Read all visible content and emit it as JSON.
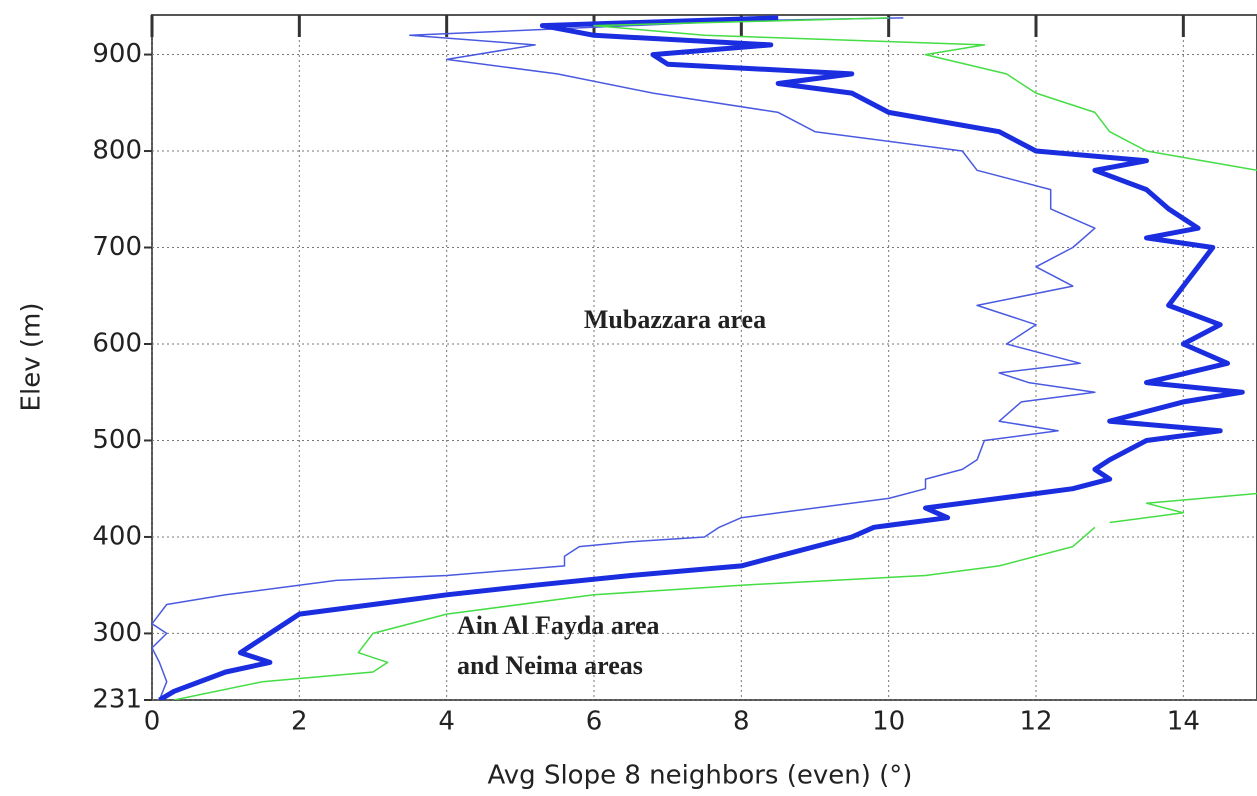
{
  "chart_data": {
    "type": "line",
    "xlabel": "Avg Slope 8 neighbors (even) (°)",
    "ylabel": "Elev (m)",
    "annotations": [
      "Mubazzara area",
      "Ain Al Fayda area",
      "and Neima areas"
    ],
    "xlim": [
      0,
      15
    ],
    "xticks": [
      0,
      2,
      4,
      6,
      8,
      10,
      12,
      14
    ],
    "ylim": [
      231,
      941
    ],
    "yticks": [
      231,
      300,
      400,
      500,
      600,
      700,
      800,
      900
    ],
    "grid": true,
    "series": [
      {
        "color": "#4a5ae0",
        "width": 1.5,
        "x": [
          0.1,
          0.2,
          0.1,
          0.0,
          0.2,
          0.0,
          0.1,
          0.2,
          1.0,
          2.5,
          4.0,
          5.6,
          5.6,
          5.8,
          6.5,
          7.5,
          7.7,
          8.0,
          9.0,
          10.0,
          10.5,
          10.5,
          11.0,
          11.2,
          11.3,
          12.3,
          11.5,
          11.8,
          12.8,
          11.9,
          11.5,
          12.6,
          11.6,
          12.0,
          11.2,
          12.5,
          12.0,
          12.5,
          12.8,
          12.2,
          12.2,
          11.2,
          11.0,
          9.0,
          8.5,
          6.8,
          5.5,
          4.0,
          5.2,
          3.5,
          8.0,
          10.2
        ],
        "values": [
          231,
          250,
          270,
          285,
          300,
          310,
          320,
          330,
          340,
          355,
          360,
          370,
          380,
          390,
          395,
          400,
          410,
          420,
          430,
          440,
          450,
          460,
          470,
          480,
          500,
          510,
          520,
          540,
          550,
          560,
          570,
          580,
          600,
          620,
          640,
          660,
          680,
          700,
          720,
          740,
          760,
          780,
          800,
          820,
          840,
          860,
          880,
          895,
          910,
          920,
          935,
          938
        ]
      },
      {
        "color": "#1a2ee0",
        "width": 5,
        "x": [
          0.1,
          0.3,
          1.0,
          1.6,
          1.2,
          1.6,
          2.0,
          3.0,
          4.0,
          5.2,
          6.5,
          8.0,
          8.5,
          9.5,
          9.8,
          10.8,
          10.5,
          11.5,
          12.5,
          13.0,
          12.8,
          13.0,
          13.5,
          14.5,
          13.0,
          14.0,
          14.8,
          13.5,
          14.6,
          14.0,
          14.5,
          13.8,
          14.0,
          14.2,
          14.4,
          13.5,
          14.2,
          13.8,
          13.5,
          12.8,
          13.5,
          12.0,
          11.5,
          10.0,
          9.5,
          8.5,
          9.5,
          7.0,
          6.8,
          8.4,
          6.0,
          5.3,
          8.5
        ],
        "values": [
          231,
          240,
          260,
          270,
          280,
          300,
          320,
          330,
          340,
          350,
          360,
          370,
          380,
          400,
          410,
          420,
          430,
          440,
          450,
          460,
          470,
          480,
          500,
          510,
          520,
          540,
          550,
          560,
          580,
          600,
          620,
          640,
          660,
          680,
          700,
          710,
          720,
          740,
          760,
          780,
          790,
          800,
          820,
          840,
          860,
          870,
          880,
          890,
          900,
          910,
          920,
          930,
          938
        ]
      },
      {
        "color": "#44dd44",
        "width": 1.5,
        "x": [
          0.3,
          1.5,
          3.0,
          3.2,
          2.8,
          3.0,
          4.0,
          6.0,
          8.0,
          10.5,
          11.5,
          12.5,
          12.8,
          null,
          13.0,
          14.0,
          13.5,
          15.0,
          null,
          15.0,
          13.5,
          13.0,
          12.8,
          12.0,
          11.6,
          10.5,
          11.3,
          7.5,
          6.0,
          10.0
        ],
        "values": [
          231,
          250,
          260,
          270,
          280,
          300,
          320,
          340,
          350,
          360,
          370,
          390,
          410,
          null,
          415,
          425,
          435,
          445,
          null,
          780,
          800,
          820,
          840,
          860,
          880,
          900,
          910,
          920,
          930,
          938
        ]
      }
    ]
  }
}
